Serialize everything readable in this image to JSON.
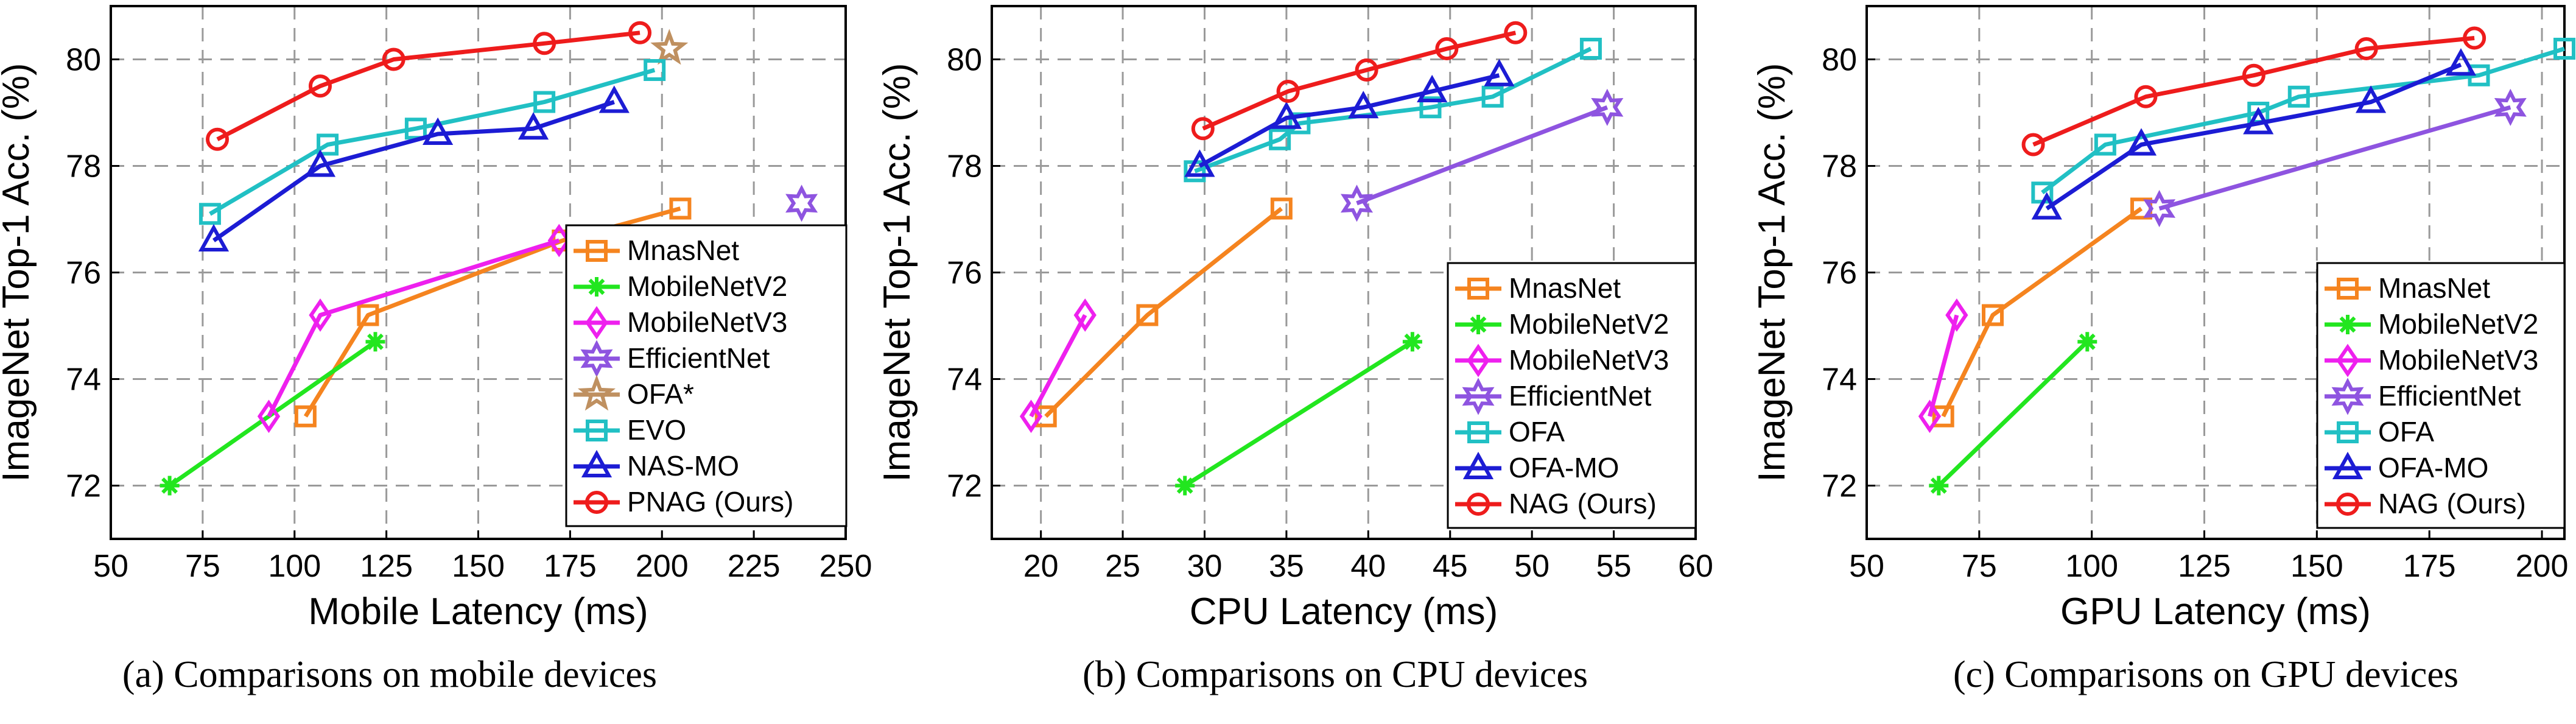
{
  "chart_data": [
    {
      "type": "line",
      "caption": "(a) Comparisons on mobile devices",
      "xlabel": "Mobile Latency (ms)",
      "ylabel": "ImageNet Top-1 Acc. (%)",
      "xlim": [
        50,
        250
      ],
      "ylim": [
        71,
        81
      ],
      "xticks": [
        50,
        75,
        100,
        125,
        150,
        175,
        200,
        225,
        250
      ],
      "yticks": [
        72,
        74,
        76,
        78,
        80
      ],
      "grid": true,
      "legend_position": "lower-right",
      "series": [
        {
          "name": "MnasNet",
          "color": "#f5841f",
          "marker": "square",
          "x": [
            103,
            120,
            173,
            205
          ],
          "y": [
            73.3,
            75.2,
            76.6,
            77.2
          ]
        },
        {
          "name": "MobileNetV2",
          "color": "#22e61f",
          "marker": "asterisk",
          "x": [
            66,
            122
          ],
          "y": [
            72.0,
            74.7
          ]
        },
        {
          "name": "MobileNetV3",
          "color": "#ee20ee",
          "marker": "diamond",
          "x": [
            93,
            107,
            172
          ],
          "y": [
            73.3,
            75.2,
            76.6
          ]
        },
        {
          "name": "EfficientNet",
          "color": "#8e54e0",
          "marker": "hexagram",
          "x": [
            238
          ],
          "y": [
            77.3
          ]
        },
        {
          "name": "OFA*",
          "color": "#bf9060",
          "marker": "pentagram",
          "x": [
            202
          ],
          "y": [
            80.2
          ]
        },
        {
          "name": "EVO",
          "color": "#21c0c4",
          "marker": "square",
          "x": [
            77,
            109,
            133,
            168,
            198
          ],
          "y": [
            77.1,
            78.4,
            78.7,
            79.2,
            79.8
          ]
        },
        {
          "name": "NAS-MO",
          "color": "#1c1cd4",
          "marker": "triangle",
          "x": [
            78,
            107,
            139,
            165,
            187
          ],
          "y": [
            76.6,
            78.0,
            78.6,
            78.7,
            79.2
          ]
        },
        {
          "name": "PNAG (Ours)",
          "color": "#ee1c1c",
          "marker": "circle",
          "x": [
            79,
            107,
            127,
            168,
            194
          ],
          "y": [
            78.5,
            79.5,
            80.0,
            80.3,
            80.5
          ]
        }
      ]
    },
    {
      "type": "line",
      "caption": "(b) Comparisons on CPU devices",
      "xlabel": "CPU Latency (ms)",
      "ylabel": "ImageNet Top-1 Acc. (%)",
      "xlim": [
        17,
        60
      ],
      "ylim": [
        71,
        81
      ],
      "xticks": [
        20,
        25,
        30,
        35,
        40,
        45,
        50,
        55,
        60
      ],
      "yticks": [
        72,
        74,
        76,
        78,
        80
      ],
      "grid": true,
      "legend_position": "lower-right",
      "series": [
        {
          "name": "MnasNet",
          "color": "#f5841f",
          "marker": "square",
          "x": [
            20.3,
            26.5,
            34.7
          ],
          "y": [
            73.3,
            75.2,
            77.2
          ]
        },
        {
          "name": "MobileNetV2",
          "color": "#22e61f",
          "marker": "asterisk",
          "x": [
            28.8,
            42.7
          ],
          "y": [
            72.0,
            74.7
          ]
        },
        {
          "name": "MobileNetV3",
          "color": "#ee20ee",
          "marker": "diamond",
          "x": [
            19.4,
            22.7
          ],
          "y": [
            73.3,
            75.2
          ]
        },
        {
          "name": "EfficientNet",
          "color": "#8e54e0",
          "marker": "hexagram",
          "x": [
            39.3,
            54.6
          ],
          "y": [
            77.3,
            79.1
          ]
        },
        {
          "name": "OFA",
          "color": "#21c0c4",
          "marker": "square",
          "x": [
            29.4,
            34.6,
            35.8,
            43.8,
            47.6,
            53.6
          ],
          "y": [
            77.9,
            78.5,
            78.8,
            79.1,
            79.3,
            80.2
          ]
        },
        {
          "name": "OFA-MO",
          "color": "#1c1cd4",
          "marker": "triangle",
          "x": [
            29.7,
            35.0,
            39.7,
            43.9,
            48.0
          ],
          "y": [
            78.0,
            78.9,
            79.1,
            79.4,
            79.7
          ]
        },
        {
          "name": "NAG (Ours)",
          "color": "#ee1c1c",
          "marker": "circle",
          "x": [
            29.9,
            35.1,
            39.9,
            44.8,
            49.0
          ],
          "y": [
            78.7,
            79.4,
            79.8,
            80.2,
            80.5
          ]
        }
      ]
    },
    {
      "type": "line",
      "caption": "(c) Comparisons on GPU devices",
      "xlabel": "GPU Latency (ms)",
      "ylabel": "ImageNet Top-1 Acc. (%)",
      "xlim": [
        50,
        205
      ],
      "ylim": [
        71,
        81
      ],
      "xticks": [
        50,
        75,
        100,
        125,
        150,
        175,
        200
      ],
      "yticks": [
        72,
        74,
        76,
        78,
        80
      ],
      "grid": true,
      "legend_position": "lower-right",
      "series": [
        {
          "name": "MnasNet",
          "color": "#f5841f",
          "marker": "square",
          "x": [
            67,
            78,
            111
          ],
          "y": [
            73.3,
            75.2,
            77.2
          ]
        },
        {
          "name": "MobileNetV2",
          "color": "#22e61f",
          "marker": "asterisk",
          "x": [
            66,
            99
          ],
          "y": [
            72.0,
            74.7
          ]
        },
        {
          "name": "MobileNetV3",
          "color": "#ee20ee",
          "marker": "diamond",
          "x": [
            64,
            70
          ],
          "y": [
            73.3,
            75.2
          ]
        },
        {
          "name": "EfficientNet",
          "color": "#8e54e0",
          "marker": "hexagram",
          "x": [
            115,
            193
          ],
          "y": [
            77.2,
            79.1
          ]
        },
        {
          "name": "OFA",
          "color": "#21c0c4",
          "marker": "square",
          "x": [
            89,
            103,
            137,
            146,
            186,
            205
          ],
          "y": [
            77.5,
            78.4,
            79.0,
            79.3,
            79.7,
            80.2
          ]
        },
        {
          "name": "OFA-MO",
          "color": "#1c1cd4",
          "marker": "triangle",
          "x": [
            90,
            111,
            137,
            162,
            182
          ],
          "y": [
            77.2,
            78.4,
            78.8,
            79.2,
            79.9
          ]
        },
        {
          "name": "NAG (Ours)",
          "color": "#ee1c1c",
          "marker": "circle",
          "x": [
            87,
            112,
            136,
            161,
            185
          ],
          "y": [
            78.4,
            79.3,
            79.7,
            80.2,
            80.4
          ]
        }
      ]
    }
  ]
}
